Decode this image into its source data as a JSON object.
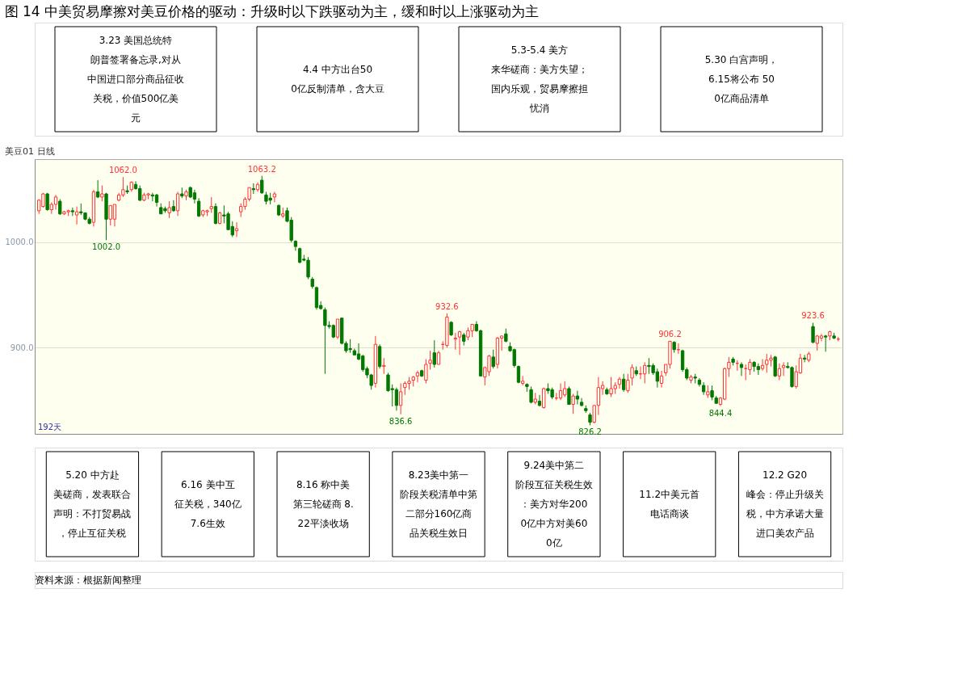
{
  "chart_data": {
    "type": "candlestick",
    "title": "图 14  中美贸易摩擦对美豆价格的驱动：升级时以下跌驱动为主，缓和时以上涨驱动为主",
    "categories": [
      null,
      null,
      null,
      null,
      null,
      null,
      null,
      null,
      null,
      null,
      null,
      null,
      null,
      null,
      null,
      null,
      null,
      null,
      null,
      null,
      null,
      null,
      null,
      null,
      null,
      null,
      null,
      null,
      null,
      null,
      null,
      null,
      null,
      null,
      null,
      null,
      null,
      null,
      null,
      null,
      null,
      null,
      null,
      null,
      null,
      null,
      null,
      null,
      null,
      null,
      null,
      null,
      null,
      null,
      null,
      null,
      null,
      null,
      null,
      null,
      null,
      null,
      null,
      null,
      null,
      null,
      null,
      null,
      null,
      null,
      null,
      null,
      null,
      null,
      null,
      null,
      null,
      null,
      null,
      null,
      null,
      null,
      null,
      null,
      null,
      null,
      null,
      null,
      null,
      null,
      null,
      null,
      null,
      null,
      null,
      null,
      null,
      null,
      null,
      null,
      null,
      null,
      null,
      null,
      null,
      null,
      null,
      null,
      null,
      null,
      null,
      null,
      null,
      null,
      null,
      null,
      null,
      null,
      null,
      null,
      null,
      null,
      null,
      null,
      null,
      null,
      null,
      null,
      null,
      null,
      null,
      null,
      null,
      null,
      null,
      null,
      null,
      null,
      null,
      null,
      null,
      null,
      null,
      null,
      null,
      null,
      null,
      null,
      null,
      null,
      null,
      null,
      null,
      null,
      null,
      null,
      null,
      null,
      null,
      null,
      null,
      null,
      null,
      null,
      null,
      null,
      null,
      null,
      null,
      null,
      null,
      null,
      null,
      null,
      null,
      null,
      null,
      null,
      null,
      null,
      null,
      null,
      null,
      null,
      null,
      null,
      null,
      null,
      null,
      null,
      null
    ],
    "value_labels": [
      null,
      null,
      null,
      null,
      null,
      null,
      null,
      null,
      null,
      null,
      null,
      null,
      null,
      null,
      null,
      null,
      "1002.0",
      null,
      null,
      null,
      "1062.0",
      null,
      null,
      null,
      null,
      null,
      null,
      null,
      null,
      null,
      null,
      null,
      null,
      null,
      null,
      null,
      null,
      null,
      null,
      null,
      null,
      null,
      null,
      null,
      null,
      null,
      null,
      null,
      null,
      null,
      null,
      null,
      null,
      "1063.2",
      null,
      null,
      null,
      null,
      null,
      null,
      null,
      null,
      null,
      null,
      null,
      null,
      null,
      null,
      null,
      null,
      null,
      null,
      null,
      null,
      null,
      null,
      null,
      null,
      null,
      null,
      null,
      null,
      null,
      null,
      null,
      null,
      "836.6",
      null,
      null,
      null,
      null,
      null,
      null,
      null,
      null,
      null,
      null,
      "932.6",
      null,
      null,
      null,
      null,
      null,
      null,
      null,
      null,
      null,
      null,
      null,
      null,
      null,
      null,
      null,
      null,
      null,
      null,
      null,
      null,
      null,
      null,
      null,
      null,
      null,
      null,
      null,
      null,
      null,
      null,
      null,
      null,
      null,
      "826.2",
      null,
      null,
      null,
      null,
      null,
      null,
      null,
      null,
      null,
      null,
      null,
      null,
      null,
      null,
      null,
      null,
      null,
      null,
      "906.2",
      null,
      null,
      null,
      null,
      null,
      null,
      null,
      null,
      null,
      null,
      null,
      "844.4",
      null,
      null,
      null,
      null,
      null,
      null,
      null,
      null,
      null,
      null,
      null,
      null,
      null,
      null,
      null,
      null,
      null,
      null,
      null,
      null,
      null,
      "923.6",
      null,
      null,
      null,
      null,
      null,
      null
    ],
    "ohlc": [
      [
        1030,
        1041,
        1027,
        1040
      ],
      [
        1034,
        1047,
        1033,
        1046
      ],
      [
        1046,
        1047,
        1030,
        1031
      ],
      [
        1031,
        1038,
        1027,
        1036
      ],
      [
        1036,
        1045,
        1031,
        1043
      ],
      [
        1039,
        1041,
        1026,
        1027
      ],
      [
        1027,
        1030,
        1026,
        1029
      ],
      [
        1029,
        1031,
        1025,
        1030
      ],
      [
        1030,
        1033,
        1025,
        1029
      ],
      [
        1026,
        1034,
        1017,
        1029
      ],
      [
        1029,
        1037,
        1026,
        1028
      ],
      [
        1028,
        1028,
        1021,
        1022
      ],
      [
        1022,
        1024,
        1017,
        1018
      ],
      [
        1019,
        1050,
        1015,
        1048
      ],
      [
        1048,
        1059,
        1042,
        1043
      ],
      [
        1043,
        1054,
        1039,
        1046
      ],
      [
        1046,
        1047,
        1002,
        1022
      ],
      [
        1022,
        1035,
        1016,
        1035
      ],
      [
        1022,
        1036,
        1015,
        1036
      ],
      [
        1040,
        1047,
        1039,
        1045
      ],
      [
        1045,
        1062,
        1043,
        1050
      ],
      [
        1049,
        1054,
        1046,
        1048
      ],
      [
        1050,
        1058,
        1048,
        1057
      ],
      [
        1055,
        1058,
        1050,
        1051
      ],
      [
        1051,
        1054,
        1039,
        1040
      ],
      [
        1040,
        1047,
        1039,
        1045
      ],
      [
        1045,
        1047,
        1041,
        1046
      ],
      [
        1045,
        1047,
        1039,
        1044
      ],
      [
        1045,
        1046,
        1034,
        1038
      ],
      [
        1033,
        1037,
        1027,
        1027
      ],
      [
        1032,
        1034,
        1028,
        1030
      ],
      [
        1028,
        1039,
        1023,
        1033
      ],
      [
        1034,
        1040,
        1029,
        1030
      ],
      [
        1030,
        1048,
        1025,
        1046
      ],
      [
        1046,
        1052,
        1042,
        1044
      ],
      [
        1044,
        1050,
        1040,
        1048
      ],
      [
        1052,
        1053,
        1042,
        1043
      ],
      [
        1047,
        1050,
        1037,
        1041
      ],
      [
        1039,
        1042,
        1024,
        1025
      ],
      [
        1026,
        1031,
        1024,
        1030
      ],
      [
        1029,
        1031,
        1025,
        1030
      ],
      [
        1032,
        1043,
        1028,
        1034
      ],
      [
        1034,
        1037,
        1017,
        1018
      ],
      [
        1018,
        1029,
        1017,
        1028
      ],
      [
        1026,
        1035,
        1018,
        1025
      ],
      [
        1027,
        1029,
        1012,
        1012
      ],
      [
        1015,
        1020,
        1005,
        1007
      ],
      [
        1011,
        1019,
        1005,
        1013
      ],
      [
        1029,
        1037,
        1024,
        1034
      ],
      [
        1034,
        1043,
        1031,
        1041
      ],
      [
        1041,
        1052,
        1039,
        1052
      ],
      [
        1051,
        1056,
        1046,
        1050
      ],
      [
        1050,
        1057,
        1048,
        1055
      ],
      [
        1059,
        1063.2,
        1046,
        1047
      ],
      [
        1045,
        1048,
        1036,
        1039
      ],
      [
        1042,
        1047,
        1036,
        1040
      ],
      [
        1043,
        1048,
        1038,
        1046
      ],
      [
        1035,
        1036,
        1025,
        1026
      ],
      [
        1025,
        1033,
        1023,
        1027
      ],
      [
        1030,
        1033,
        1019,
        1020
      ],
      [
        1021,
        1024,
        1000,
        1002
      ],
      [
        1001,
        1002,
        992,
        996
      ],
      [
        994,
        995,
        980,
        981
      ],
      [
        984,
        988,
        982,
        983
      ],
      [
        983,
        986,
        965,
        967
      ],
      [
        965,
        967,
        956,
        958
      ],
      [
        957,
        958,
        936,
        938
      ],
      [
        940,
        944,
        936,
        937
      ],
      [
        936,
        938,
        875,
        921
      ],
      [
        921,
        925,
        918,
        920
      ],
      [
        921,
        922,
        909,
        910
      ],
      [
        910,
        927,
        908,
        927
      ],
      [
        928,
        928,
        903,
        904
      ],
      [
        904,
        906,
        895,
        897
      ],
      [
        899,
        908,
        895,
        898
      ],
      [
        897,
        899,
        893,
        893
      ],
      [
        894,
        904,
        888,
        889
      ],
      [
        892,
        893,
        877,
        879
      ],
      [
        880,
        882,
        871,
        874
      ],
      [
        874,
        875,
        860,
        864
      ],
      [
        866,
        911,
        862,
        903
      ],
      [
        901,
        903,
        880,
        882
      ],
      [
        882,
        890,
        875,
        883
      ],
      [
        874,
        876,
        858,
        859
      ],
      [
        861,
        865,
        844,
        860
      ],
      [
        860,
        862,
        840,
        845
      ],
      [
        845,
        866,
        836.6,
        858
      ],
      [
        862,
        868,
        855,
        866
      ],
      [
        866,
        872,
        860,
        868
      ],
      [
        869,
        873,
        863,
        872
      ],
      [
        873,
        878,
        867,
        876
      ],
      [
        878,
        879,
        872,
        873
      ],
      [
        869,
        889,
        866,
        884
      ],
      [
        885,
        897,
        879,
        888
      ],
      [
        895,
        907,
        881,
        884
      ],
      [
        884,
        897,
        884,
        895
      ],
      [
        903,
        906,
        898,
        903
      ],
      [
        902,
        932.6,
        900,
        929
      ],
      [
        924,
        925,
        911,
        912
      ],
      [
        908,
        914,
        898,
        909
      ],
      [
        910,
        916,
        893,
        915
      ],
      [
        912,
        914,
        902,
        906
      ],
      [
        910,
        919,
        907,
        916
      ],
      [
        916,
        922,
        910,
        922
      ],
      [
        922,
        925,
        915,
        916
      ],
      [
        916,
        917,
        873,
        873
      ],
      [
        872,
        882,
        864,
        881
      ],
      [
        877,
        893,
        873,
        892
      ],
      [
        891,
        898,
        880,
        882
      ],
      [
        884,
        910,
        880,
        909
      ],
      [
        909,
        911,
        897,
        911
      ],
      [
        913,
        918,
        905,
        906
      ],
      [
        901,
        905,
        896,
        897
      ],
      [
        898,
        899,
        881,
        883
      ],
      [
        882,
        883,
        866,
        867
      ],
      [
        866,
        873,
        864,
        868
      ],
      [
        865,
        866,
        858,
        863
      ],
      [
        860,
        863,
        847,
        848
      ],
      [
        848,
        857,
        846,
        851
      ],
      [
        849,
        855,
        844,
        845
      ],
      [
        843,
        862,
        842,
        861
      ],
      [
        861,
        866,
        856,
        859
      ],
      [
        860,
        862,
        851,
        853
      ],
      [
        852,
        857,
        850,
        852
      ],
      [
        852,
        866,
        850,
        859
      ],
      [
        855,
        868,
        853,
        861
      ],
      [
        861,
        863,
        846,
        846
      ],
      [
        846,
        856,
        837,
        854
      ],
      [
        854,
        859,
        846,
        851
      ],
      [
        848,
        852,
        844,
        845
      ],
      [
        842,
        845,
        838,
        840
      ],
      [
        836,
        838,
        826.2,
        829
      ],
      [
        829,
        845,
        828,
        845
      ],
      [
        845,
        872,
        836,
        862
      ],
      [
        861,
        868,
        855,
        864
      ],
      [
        860,
        862,
        855,
        856
      ],
      [
        856,
        872,
        853,
        861
      ],
      [
        861,
        867,
        856,
        864
      ],
      [
        865,
        872,
        861,
        870
      ],
      [
        870,
        875,
        858,
        860
      ],
      [
        859,
        875,
        857,
        869
      ],
      [
        871,
        884,
        864,
        881
      ],
      [
        878,
        882,
        873,
        875
      ],
      [
        875,
        882,
        870,
        875
      ],
      [
        875,
        886,
        866,
        883
      ],
      [
        883,
        890,
        875,
        882
      ],
      [
        883,
        885,
        874,
        876
      ],
      [
        877,
        880,
        862,
        868
      ],
      [
        866,
        878,
        862,
        873
      ],
      [
        876,
        884,
        873,
        884
      ],
      [
        884,
        906.2,
        880,
        906
      ],
      [
        905,
        906,
        895,
        898
      ],
      [
        898,
        904,
        894,
        898
      ],
      [
        897,
        898,
        877,
        879
      ],
      [
        879,
        881,
        869,
        871
      ],
      [
        869,
        874,
        866,
        872
      ],
      [
        872,
        875,
        866,
        871
      ],
      [
        869,
        871,
        863,
        865
      ],
      [
        864,
        867,
        855,
        858
      ],
      [
        855,
        864,
        852,
        858
      ],
      [
        859,
        864,
        850,
        853
      ],
      [
        852,
        854,
        847,
        847
      ],
      [
        846,
        853,
        844.4,
        852
      ],
      [
        851,
        881,
        850,
        880
      ],
      [
        880,
        891,
        872,
        886
      ],
      [
        889,
        891,
        883,
        886
      ],
      [
        885,
        888,
        878,
        885
      ],
      [
        884,
        886,
        873,
        881
      ],
      [
        880,
        884,
        869,
        880
      ],
      [
        879,
        889,
        874,
        886
      ],
      [
        886,
        887,
        877,
        882
      ],
      [
        882,
        885,
        874,
        879
      ],
      [
        880,
        889,
        878,
        883
      ],
      [
        884,
        894,
        876,
        888
      ],
      [
        888,
        893,
        882,
        890
      ],
      [
        891,
        892,
        872,
        873
      ],
      [
        873,
        885,
        869,
        880
      ],
      [
        881,
        886,
        873,
        883
      ],
      [
        882,
        886,
        880,
        881
      ],
      [
        881,
        882,
        862,
        863
      ],
      [
        863,
        883,
        861,
        877
      ],
      [
        876,
        894,
        875,
        890
      ],
      [
        890,
        893,
        886,
        889
      ],
      [
        888,
        896,
        886,
        894
      ],
      [
        920,
        923.6,
        904,
        905
      ],
      [
        904,
        912,
        897,
        911
      ],
      [
        909,
        913,
        906,
        911
      ],
      [
        911,
        912,
        896,
        910
      ],
      [
        911,
        916,
        907,
        915
      ],
      [
        911,
        914,
        908,
        909
      ],
      [
        908,
        910,
        906,
        908
      ]
    ],
    "ylim": [
      818,
      1079
    ],
    "yticks": [
      {
        "value": 900,
        "label": "900.0"
      },
      {
        "value": 1000,
        "label": "1000.0"
      }
    ],
    "tick_labels": "y",
    "grid": "y",
    "annotations": [
      "3.23 美国总统特朗普签署备忘录,对从中国进口部分商品征收关税，价值500亿美元",
      "4.4 中方出台500亿反制清单，含大豆",
      "5.3-5.4 美方来华磋商：美方失望；国内乐观，贸易摩擦担忧消",
      "5.30 白宫声明，6.15将公布 500亿商品清单",
      "5.20 中方赴美磋商，发表联合声明：不打贸易战，停止互征关税",
      "6.16 美中互征关税，340亿7.6生效",
      "8.16 称中美第三轮磋商 8.22平淡收场",
      "8.23美中第一阶段关税清单中第二部分160亿商品关税生效日",
      "9.24美中第二阶段互征关税生效：美方对华2000亿中方对美600亿",
      "11.2中美元首电话商谈",
      "12.2 G20峰会：停止升级关税，中方承诺大量进口美农产品",
      "192天",
      "美豆01  日线",
      "资料来源：根据新闻整理"
    ]
  }
}
